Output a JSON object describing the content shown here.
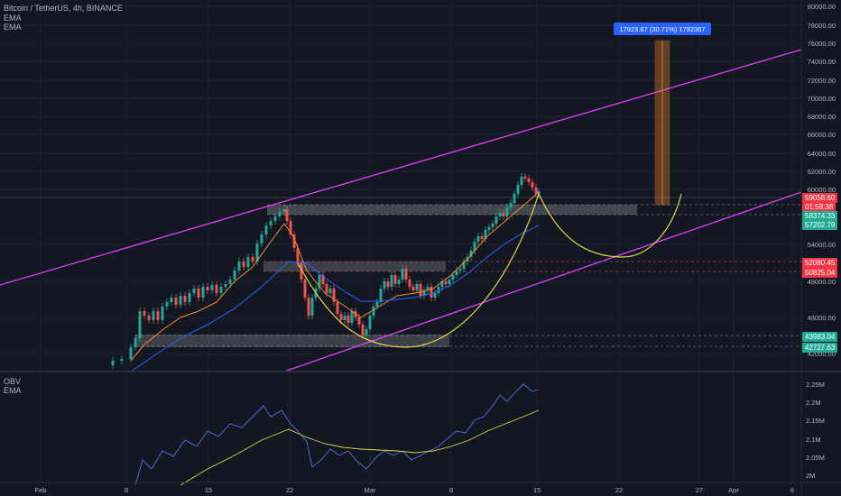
{
  "header": {
    "symbol_title": "Bitcoin / TetherUS, 4h, BINANCE",
    "indicators": [
      "EMA",
      "EMA"
    ]
  },
  "measure_label": "17923.67 (30.71%) 1792367",
  "price_axis": {
    "ticks": [
      "80000.00",
      "78000.00",
      "76000.00",
      "74000.00",
      "72000.00",
      "70000.00",
      "68000.00",
      "66000.00",
      "64000.00",
      "62000.00",
      "60000.00",
      "54000.00",
      "48000.00",
      "46000.00",
      "42000.00"
    ]
  },
  "price_tags": [
    {
      "text": "59058.60",
      "color": "#f23645"
    },
    {
      "text": "01:58:38",
      "color": "#f23645"
    },
    {
      "text": "58374.33",
      "color": "#22ab94"
    },
    {
      "text": "57202.79",
      "color": "#22ab94"
    },
    {
      "text": "52080.45",
      "color": "#f23645"
    },
    {
      "text": "50825.04",
      "color": "#f23645"
    },
    {
      "text": "43983.04",
      "color": "#22ab94"
    },
    {
      "text": "42727.63",
      "color": "#22ab94"
    }
  ],
  "lower_pane": {
    "indicators": [
      "OBV",
      "EMA"
    ],
    "ticks": [
      "2.25M",
      "2.2M",
      "2.15M",
      "2.1M",
      "2.05M",
      "2M"
    ]
  },
  "time_axis": {
    "labels": [
      "Feb",
      "8",
      "15",
      "22",
      "Mar",
      "8",
      "15",
      "22",
      "27",
      "Apr",
      "6"
    ]
  },
  "colors": {
    "bg": "#131722",
    "grid": "#1f2430",
    "up": "#26a69a",
    "down": "#ef5350",
    "ema_fast": "#f28b2c",
    "ema_slow": "#2962ff",
    "channel": "#e040fb",
    "curve": "#e6d44a",
    "obv": "#5b6ee1"
  }
}
